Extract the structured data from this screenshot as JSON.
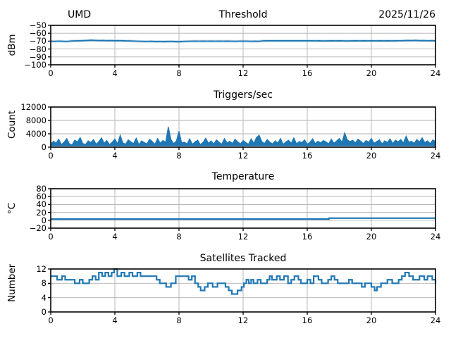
{
  "figure": {
    "background": "#ffffff",
    "line_color": "#1f77b4",
    "line_halo_color": "#9dc6e0",
    "grid_color": "#b0b0b0",
    "spine_color": "#000000",
    "station_label": "UMD",
    "date_label": "2025/11/26"
  },
  "chart_data": [
    {
      "id": "threshold",
      "type": "line",
      "title": "Threshold",
      "title_left": "UMD",
      "title_right": "2025/11/26",
      "ylabel": "dBm",
      "xlim": [
        0,
        24
      ],
      "ylim": [
        -100,
        -50
      ],
      "xticks": [
        0,
        4,
        8,
        12,
        16,
        20,
        24
      ],
      "xtick_labels": [
        "0",
        "4",
        "8",
        "12",
        "16",
        "20",
        "24"
      ],
      "yticks": [
        -100,
        -90,
        -80,
        -70,
        -60,
        -50
      ],
      "ytick_labels": [
        "−100",
        "−90",
        "−80",
        "−70",
        "−60",
        "−50"
      ],
      "grid": true,
      "x_start": 0,
      "x_step": 0.25,
      "values": [
        -70.1,
        -70.3,
        -70.0,
        -70.2,
        -70.4,
        -69.9,
        -69.7,
        -69.6,
        -69.4,
        -69.2,
        -68.9,
        -69.1,
        -69.3,
        -69.2,
        -69.4,
        -69.3,
        -69.5,
        -69.4,
        -69.6,
        -69.7,
        -69.8,
        -70.0,
        -70.2,
        -70.3,
        -70.4,
        -70.2,
        -70.6,
        -70.4,
        -70.7,
        -70.5,
        -70.3,
        -70.6,
        -70.8,
        -70.4,
        -70.2,
        -70.1,
        -70.0,
        -70.1,
        -70.0,
        -70.1,
        -70.0,
        -70.1,
        -70.0,
        -70.1,
        -70.0,
        -70.1,
        -70.2,
        -70.1,
        -70.0,
        -70.1,
        -70.2,
        -70.1,
        -70.2,
        -69.7,
        -69.6,
        -69.6,
        -69.5,
        -69.6,
        -69.5,
        -69.6,
        -69.5,
        -69.6,
        -69.5,
        -69.6,
        -69.5,
        -69.6,
        -69.7,
        -69.6,
        -69.8,
        -69.7,
        -69.6,
        -69.7,
        -69.6,
        -69.7,
        -69.8,
        -69.7,
        -69.6,
        -69.7,
        -69.6,
        -69.7,
        -69.6,
        -69.7,
        -69.6,
        -69.7,
        -69.6,
        -69.7,
        -69.6,
        -69.5,
        -69.4,
        -69.2,
        -69.3,
        -69.1,
        -69.4,
        -69.3,
        -69.5,
        -69.4,
        -69.5
      ]
    },
    {
      "id": "triggers",
      "type": "line-fill",
      "title": "Triggers/sec",
      "ylabel": "Count",
      "xlim": [
        0,
        24
      ],
      "ylim": [
        0,
        12000
      ],
      "xticks": [
        0,
        4,
        8,
        12,
        16,
        20,
        24
      ],
      "xtick_labels": [
        "0",
        "4",
        "8",
        "12",
        "16",
        "20",
        "24"
      ],
      "yticks": [
        0,
        4000,
        8000,
        12000
      ],
      "ytick_labels": [
        "0",
        "4000",
        "8000",
        "12000"
      ],
      "grid": true,
      "fill_base": 300,
      "x_start": 0,
      "x_step": 0.166667,
      "values": [
        900,
        1800,
        1200,
        2400,
        800,
        1500,
        2600,
        1000,
        700,
        2100,
        1600,
        2900,
        1100,
        800,
        1900,
        1400,
        2300,
        900,
        1700,
        2800,
        1200,
        2000,
        800,
        1500,
        2500,
        1000,
        3600,
        1300,
        900,
        2200,
        1600,
        1100,
        2700,
        800,
        1900,
        1400,
        1000,
        2400,
        1700,
        900,
        2600,
        1200,
        2000,
        1500,
        6100,
        2300,
        1100,
        1800,
        4800,
        1300,
        1500,
        1000,
        2500,
        900,
        1600,
        2100,
        800,
        1400,
        2700,
        1200,
        1900,
        1000,
        2200,
        1500,
        900,
        2600,
        1300,
        1800,
        1100,
        2400,
        1600,
        1000,
        2000,
        1400,
        900,
        2500,
        1200,
        2900,
        3600,
        1700,
        1100,
        2300,
        1500,
        1000,
        1900,
        1300,
        2600,
        900,
        1600,
        2100,
        1200,
        2800,
        1000,
        1700,
        1400,
        2200,
        900,
        1500,
        2500,
        1100,
        1800,
        1300,
        2000,
        1600,
        1000,
        2400,
        1200,
        1900,
        2600,
        1500,
        4300,
        2200,
        1700,
        2100,
        1300,
        2400,
        1800,
        1100,
        2000,
        1500,
        2600,
        1200,
        1700,
        2200,
        1000,
        1900,
        1400,
        2500,
        1100,
        2100,
        1600,
        2300,
        1300,
        3300,
        1500,
        1800,
        1200,
        2300,
        1600,
        2800,
        1400,
        1900,
        1100,
        2200,
        1700
      ]
    },
    {
      "id": "temperature",
      "type": "step",
      "title": "Temperature",
      "ylabel": "°C",
      "xlim": [
        0,
        24
      ],
      "ylim": [
        -20,
        80
      ],
      "xticks": [
        0,
        4,
        8,
        12,
        16,
        20,
        24
      ],
      "xtick_labels": [
        "0",
        "4",
        "8",
        "12",
        "16",
        "20",
        "24"
      ],
      "yticks": [
        -20,
        0,
        20,
        40,
        60,
        80
      ],
      "ytick_labels": [
        "−20",
        "0",
        "20",
        "40",
        "60",
        "80"
      ],
      "grid": true,
      "points": [
        [
          0,
          3
        ],
        [
          17.3,
          3
        ],
        [
          17.35,
          5.3
        ],
        [
          24,
          5.3
        ]
      ]
    },
    {
      "id": "satellites",
      "type": "step",
      "title": "Satellites Tracked",
      "ylabel": "Number",
      "xlim": [
        0,
        24
      ],
      "ylim": [
        0,
        12
      ],
      "xticks": [
        0,
        4,
        8,
        12,
        16,
        20,
        24
      ],
      "xtick_labels": [
        "0",
        "4",
        "8",
        "12",
        "16",
        "20",
        "24"
      ],
      "yticks": [
        0,
        4,
        8,
        12
      ],
      "ytick_labels": [
        "0",
        "4",
        "8",
        "12"
      ],
      "grid": true,
      "points": [
        [
          0,
          10
        ],
        [
          0.4,
          9
        ],
        [
          0.7,
          10
        ],
        [
          0.9,
          9
        ],
        [
          1.5,
          8
        ],
        [
          1.8,
          9
        ],
        [
          2.0,
          8
        ],
        [
          2.4,
          9
        ],
        [
          2.6,
          10
        ],
        [
          2.8,
          9
        ],
        [
          3.0,
          11
        ],
        [
          3.2,
          10
        ],
        [
          3.4,
          11
        ],
        [
          3.6,
          10
        ],
        [
          3.8,
          11
        ],
        [
          3.95,
          12
        ],
        [
          4.15,
          10
        ],
        [
          4.4,
          11
        ],
        [
          4.6,
          10
        ],
        [
          4.9,
          11
        ],
        [
          5.1,
          10
        ],
        [
          5.4,
          11
        ],
        [
          5.6,
          10
        ],
        [
          6.6,
          9
        ],
        [
          6.8,
          8
        ],
        [
          7.2,
          7
        ],
        [
          7.5,
          8
        ],
        [
          7.8,
          10
        ],
        [
          8.6,
          9
        ],
        [
          8.8,
          10
        ],
        [
          9.0,
          8
        ],
        [
          9.2,
          7
        ],
        [
          9.35,
          6
        ],
        [
          9.6,
          7
        ],
        [
          9.8,
          8
        ],
        [
          10.1,
          7
        ],
        [
          10.4,
          8
        ],
        [
          10.9,
          7
        ],
        [
          11.1,
          6
        ],
        [
          11.3,
          5
        ],
        [
          11.65,
          6
        ],
        [
          11.9,
          7
        ],
        [
          12.05,
          8
        ],
        [
          12.2,
          9
        ],
        [
          12.35,
          8
        ],
        [
          12.5,
          9
        ],
        [
          12.65,
          8
        ],
        [
          12.9,
          9
        ],
        [
          13.1,
          8
        ],
        [
          13.5,
          9
        ],
        [
          13.65,
          10
        ],
        [
          13.8,
          9
        ],
        [
          14.1,
          10
        ],
        [
          14.3,
          9
        ],
        [
          14.55,
          10
        ],
        [
          14.8,
          8
        ],
        [
          15.0,
          9
        ],
        [
          15.2,
          10
        ],
        [
          15.45,
          9
        ],
        [
          15.6,
          8
        ],
        [
          16.0,
          9
        ],
        [
          16.2,
          8
        ],
        [
          16.4,
          10
        ],
        [
          16.7,
          9
        ],
        [
          16.9,
          8
        ],
        [
          17.3,
          9
        ],
        [
          17.5,
          10
        ],
        [
          17.7,
          9
        ],
        [
          17.9,
          8
        ],
        [
          18.6,
          9
        ],
        [
          18.8,
          8
        ],
        [
          19.4,
          7
        ],
        [
          19.6,
          8
        ],
        [
          20.0,
          7
        ],
        [
          20.2,
          6
        ],
        [
          20.35,
          7
        ],
        [
          20.6,
          8
        ],
        [
          21.0,
          9
        ],
        [
          21.3,
          8
        ],
        [
          21.7,
          9
        ],
        [
          21.9,
          10
        ],
        [
          22.1,
          11
        ],
        [
          22.35,
          10
        ],
        [
          22.6,
          9
        ],
        [
          23.0,
          10
        ],
        [
          23.3,
          9
        ],
        [
          23.5,
          10
        ],
        [
          23.8,
          9
        ],
        [
          24,
          8
        ]
      ]
    }
  ]
}
